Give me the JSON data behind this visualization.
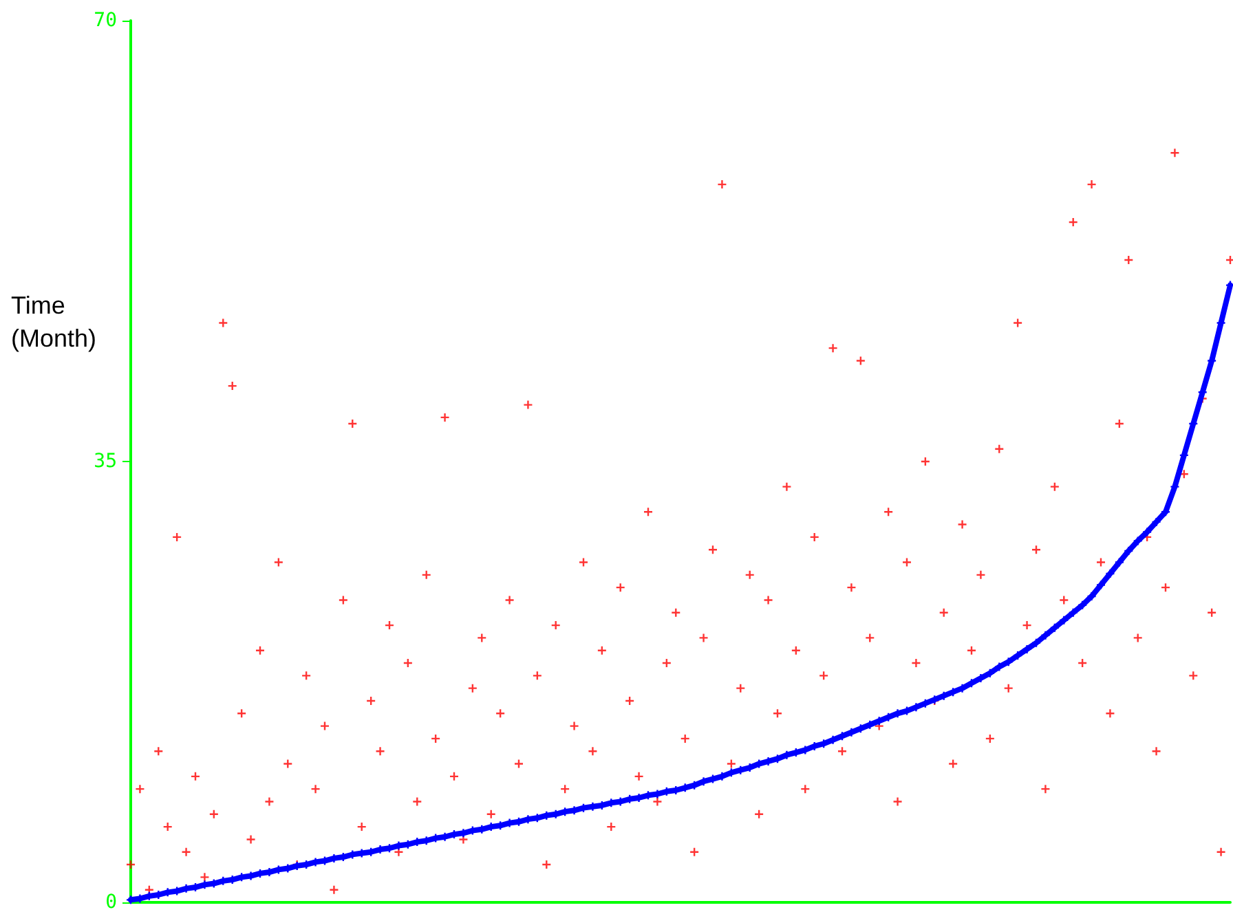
{
  "chart_data": {
    "type": "scatter",
    "ylabel": "Time\n(Month)",
    "categories": [
      null,
      null,
      null,
      null,
      null,
      null,
      null,
      null,
      null,
      null,
      null,
      null,
      null,
      null,
      null,
      null,
      null,
      null,
      null,
      null,
      null,
      null,
      null,
      null,
      null,
      null,
      null,
      null,
      null,
      null,
      null,
      null,
      null,
      null,
      null,
      null,
      null,
      null,
      null,
      null,
      null,
      null,
      null,
      null,
      null,
      null,
      null,
      null,
      null,
      null,
      null,
      null,
      null,
      null,
      null,
      null,
      null,
      null,
      null,
      null,
      null,
      null,
      null,
      null,
      null,
      null,
      null,
      null,
      null,
      null,
      null,
      null,
      null,
      null,
      null,
      null,
      null,
      null,
      null,
      null,
      null,
      null,
      null,
      null,
      null,
      null,
      null,
      null,
      null,
      null,
      null,
      null,
      null,
      null,
      null,
      null,
      null,
      null,
      null,
      null,
      null,
      null,
      null,
      null,
      null,
      null,
      null,
      null,
      null,
      null,
      null,
      null,
      null,
      null,
      null,
      null,
      null,
      null,
      null,
      null
    ],
    "ylim": [
      0,
      70
    ],
    "yticks": [
      0,
      35,
      70
    ],
    "tick_labels": "y",
    "marker": "cross",
    "series": [
      {
        "color": "#ff0000",
        "values": [
          3,
          9,
          1,
          12,
          6,
          29,
          4,
          10,
          2,
          7,
          46,
          41,
          15,
          5,
          20,
          8,
          27,
          11,
          3,
          18,
          9,
          14,
          1,
          24,
          38,
          6,
          16,
          12,
          22,
          4,
          19,
          8,
          26,
          13,
          38.5,
          10,
          5,
          17,
          21,
          7,
          15,
          24,
          11,
          39.5,
          18,
          3,
          22,
          9,
          14,
          27,
          12,
          20,
          6,
          25,
          16,
          10,
          31,
          8,
          19,
          23,
          13,
          4,
          21,
          28,
          57,
          11,
          17,
          26,
          7,
          24,
          15,
          33,
          20,
          9,
          29,
          18,
          44,
          12,
          25,
          43,
          21,
          14,
          31,
          8,
          27,
          19,
          35,
          16,
          23,
          11,
          30,
          20,
          26,
          13,
          36,
          17,
          46,
          22,
          28,
          9,
          33,
          24,
          54,
          19,
          57,
          27,
          15,
          38,
          51,
          21,
          29,
          12,
          25,
          59.5,
          34,
          18,
          40,
          23,
          4,
          51
        ]
      },
      {
        "type": "line",
        "color": "#0000ff",
        "values": [
          0.2,
          0.3,
          0.5,
          0.6,
          0.8,
          0.9,
          1.1,
          1.2,
          1.4,
          1.5,
          1.7,
          1.8,
          2.0,
          2.1,
          2.3,
          2.4,
          2.6,
          2.7,
          2.9,
          3.0,
          3.2,
          3.3,
          3.5,
          3.6,
          3.8,
          3.9,
          4.0,
          4.2,
          4.3,
          4.5,
          4.6,
          4.8,
          4.9,
          5.1,
          5.2,
          5.4,
          5.5,
          5.7,
          5.8,
          6.0,
          6.1,
          6.3,
          6.4,
          6.6,
          6.7,
          6.9,
          7.0,
          7.2,
          7.3,
          7.5,
          7.6,
          7.7,
          7.9,
          8.0,
          8.2,
          8.3,
          8.5,
          8.6,
          8.8,
          8.9,
          9.1,
          9.3,
          9.6,
          9.8,
          10.0,
          10.3,
          10.5,
          10.7,
          11.0,
          11.2,
          11.4,
          11.7,
          11.9,
          12.1,
          12.4,
          12.6,
          12.9,
          13.2,
          13.5,
          13.8,
          14.1,
          14.4,
          14.7,
          15.0,
          15.2,
          15.5,
          15.8,
          16.1,
          16.4,
          16.7,
          17.0,
          17.4,
          17.8,
          18.2,
          18.7,
          19.1,
          19.6,
          20.1,
          20.6,
          21.2,
          21.8,
          22.4,
          23.0,
          23.6,
          24.3,
          25.2,
          26.1,
          27.0,
          27.9,
          28.7,
          29.4,
          30.2,
          31.0,
          33,
          35.5,
          38,
          40.5,
          43,
          46,
          49
        ]
      }
    ]
  }
}
